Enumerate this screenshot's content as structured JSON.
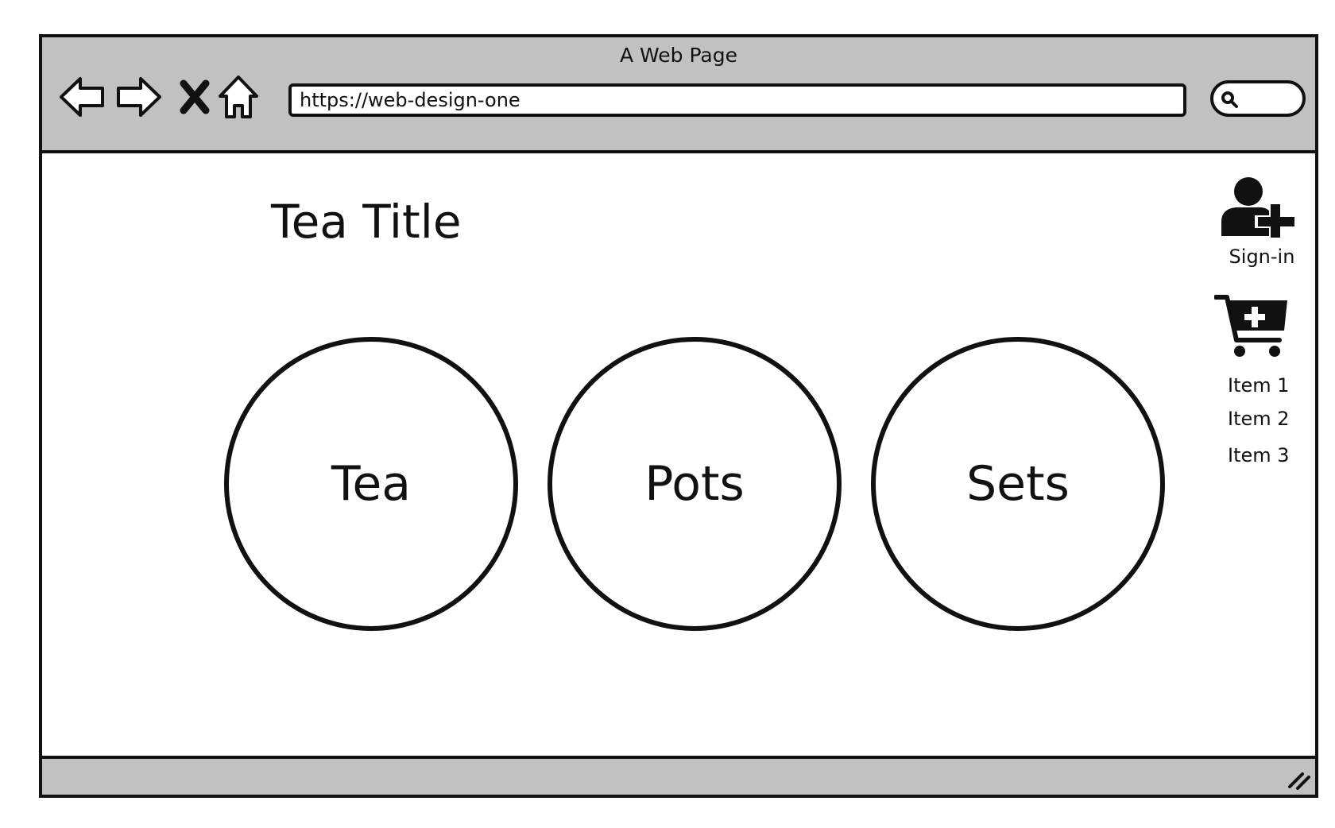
{
  "window": {
    "title": "A Web Page"
  },
  "toolbar": {
    "back_icon": "back-arrow-icon",
    "forward_icon": "forward-arrow-icon",
    "stop_icon": "close-icon",
    "home_icon": "home-icon",
    "url": "https://web-design-one",
    "search_icon": "search-icon"
  },
  "page": {
    "title": "Tea Title",
    "categories": [
      {
        "label": "Tea"
      },
      {
        "label": "Pots"
      },
      {
        "label": "Sets"
      }
    ]
  },
  "sidebar": {
    "signin_label": "Sign-in",
    "signin_icon": "user-add-icon",
    "cart_icon": "cart-add-icon",
    "cart_items": [
      "Item 1",
      "Item 2",
      "Item 3"
    ]
  },
  "colors": {
    "chrome": "#c1c1c1",
    "stroke": "#111111",
    "background": "#ffffff"
  }
}
